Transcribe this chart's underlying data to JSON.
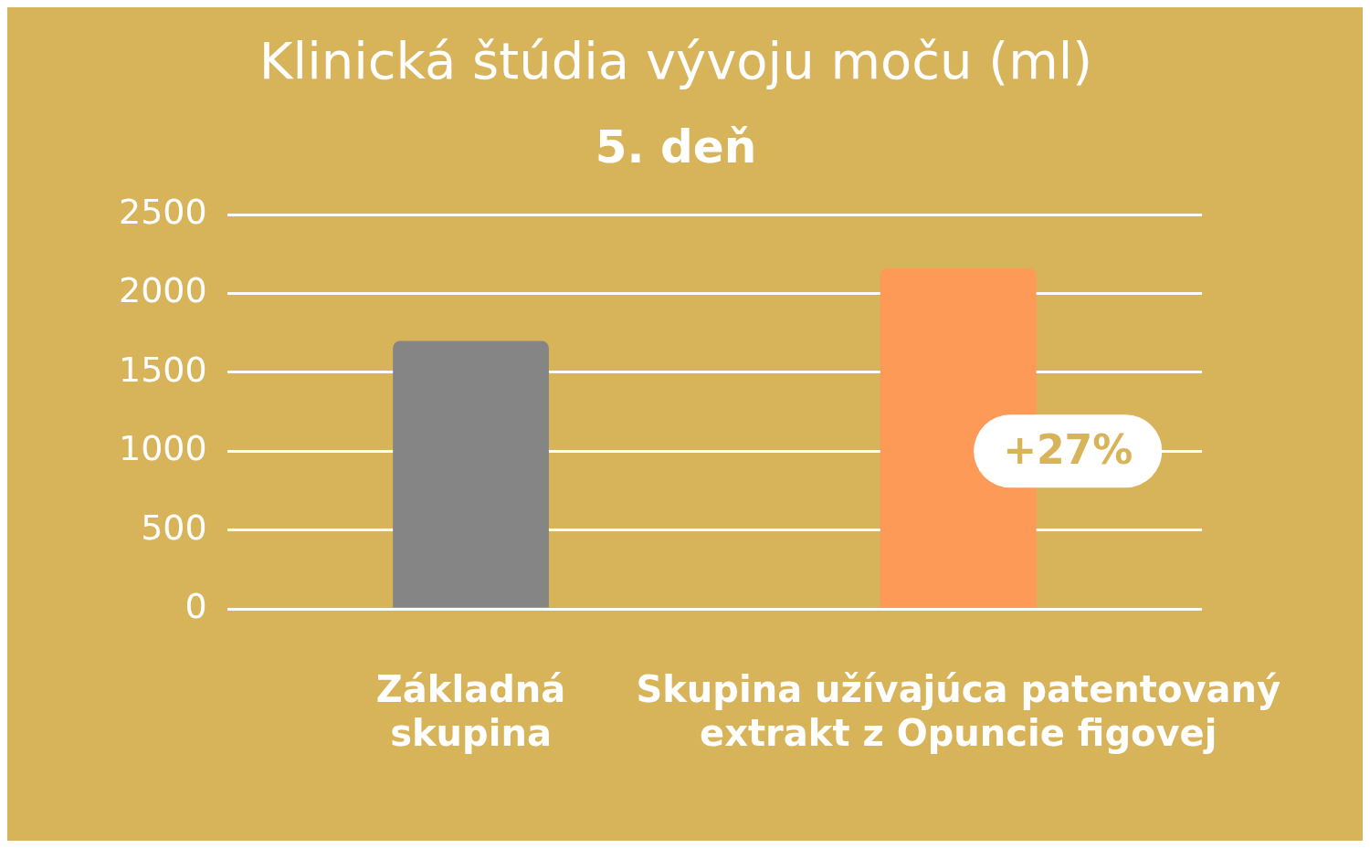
{
  "chart_data": {
    "type": "bar",
    "title": "Klinická štúdia vývoju moču (ml)",
    "subtitle": "5. deň",
    "categories": [
      "Základná skupina",
      "Skupina užívajúca patentovaný extrakt z Opuncie figovej"
    ],
    "values": [
      1700,
      2160
    ],
    "colors": [
      "#858585",
      "#fe9a58"
    ],
    "ylim": [
      0,
      2500
    ],
    "yticks": [
      0,
      500,
      1000,
      1500,
      2000,
      2500
    ],
    "grid": "y",
    "legend": false,
    "annotations": [
      "+27%"
    ]
  }
}
